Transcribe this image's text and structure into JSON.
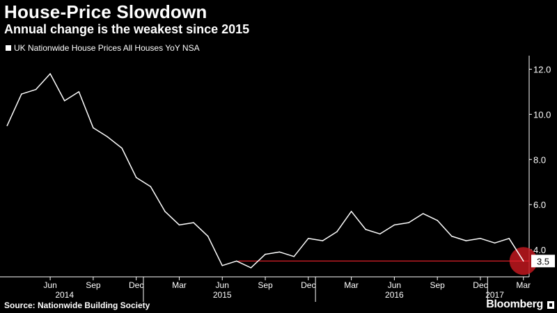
{
  "header": {
    "title": "House-Price Slowdown",
    "subtitle": "Annual change is the weakest since 2015"
  },
  "legend": {
    "label": "UK Nationwide House Prices All Houses YoY NSA"
  },
  "footer": {
    "source": "Source: Nationwide Building Society",
    "brand": "Bloomberg"
  },
  "colors": {
    "background": "#000000",
    "line": "#ffffff",
    "reference_line": "#e0202a",
    "highlight_circle": "#c0181f"
  },
  "chart_data": {
    "type": "line",
    "title": "House-Price Slowdown",
    "subtitle": "Annual change is the weakest since 2015",
    "xlabel": "",
    "ylabel": "",
    "x": [
      "2014-03",
      "2014-04",
      "2014-05",
      "2014-06",
      "2014-07",
      "2014-08",
      "2014-09",
      "2014-10",
      "2014-11",
      "2014-12",
      "2015-01",
      "2015-02",
      "2015-03",
      "2015-04",
      "2015-05",
      "2015-06",
      "2015-07",
      "2015-08",
      "2015-09",
      "2015-10",
      "2015-11",
      "2015-12",
      "2016-01",
      "2016-02",
      "2016-03",
      "2016-04",
      "2016-05",
      "2016-06",
      "2016-07",
      "2016-08",
      "2016-09",
      "2016-10",
      "2016-11",
      "2016-12",
      "2017-01",
      "2017-02",
      "2017-03"
    ],
    "series": [
      {
        "name": "UK Nationwide House Prices All Houses YoY NSA",
        "values": [
          9.5,
          10.9,
          11.1,
          11.8,
          10.6,
          11.0,
          9.4,
          9.0,
          8.5,
          7.2,
          6.8,
          5.7,
          5.1,
          5.2,
          4.6,
          3.3,
          3.5,
          3.2,
          3.8,
          3.9,
          3.7,
          4.5,
          4.4,
          4.8,
          5.7,
          4.9,
          4.7,
          5.1,
          5.2,
          5.6,
          5.3,
          4.6,
          4.4,
          4.5,
          4.3,
          4.5,
          3.5
        ]
      }
    ],
    "ylim": [
      2.8,
      12.6
    ],
    "y_ticks": [
      4.0,
      6.0,
      8.0,
      10.0,
      12.0
    ],
    "y_tick_labels": [
      "4.0",
      "6.0",
      "8.0",
      "10.0",
      "12.0"
    ],
    "x_tick_months": [
      "2014-06",
      "2014-09",
      "2014-12",
      "2015-03",
      "2015-06",
      "2015-09",
      "2015-12",
      "2016-03",
      "2016-06",
      "2016-09",
      "2016-12",
      "2017-03"
    ],
    "x_tick_labels": [
      "Jun",
      "Sep",
      "Dec",
      "Mar",
      "Jun",
      "Sep",
      "Dec",
      "Mar",
      "Jun",
      "Sep",
      "Dec",
      "Mar"
    ],
    "year_labels": [
      {
        "label": "2014",
        "month": "2014-07"
      },
      {
        "label": "2015",
        "month": "2015-06"
      },
      {
        "label": "2016",
        "month": "2016-06"
      },
      {
        "label": "2017",
        "month": "2017-01"
      }
    ],
    "year_separators": [
      "2015-01",
      "2016-01",
      "2017-01"
    ],
    "reference_line": {
      "value": 3.5,
      "from": "2015-08",
      "to": "2017-03"
    },
    "last_value_label": "3.5",
    "highlight_month": "2017-03",
    "y_axis_position": "right",
    "grid": false
  }
}
